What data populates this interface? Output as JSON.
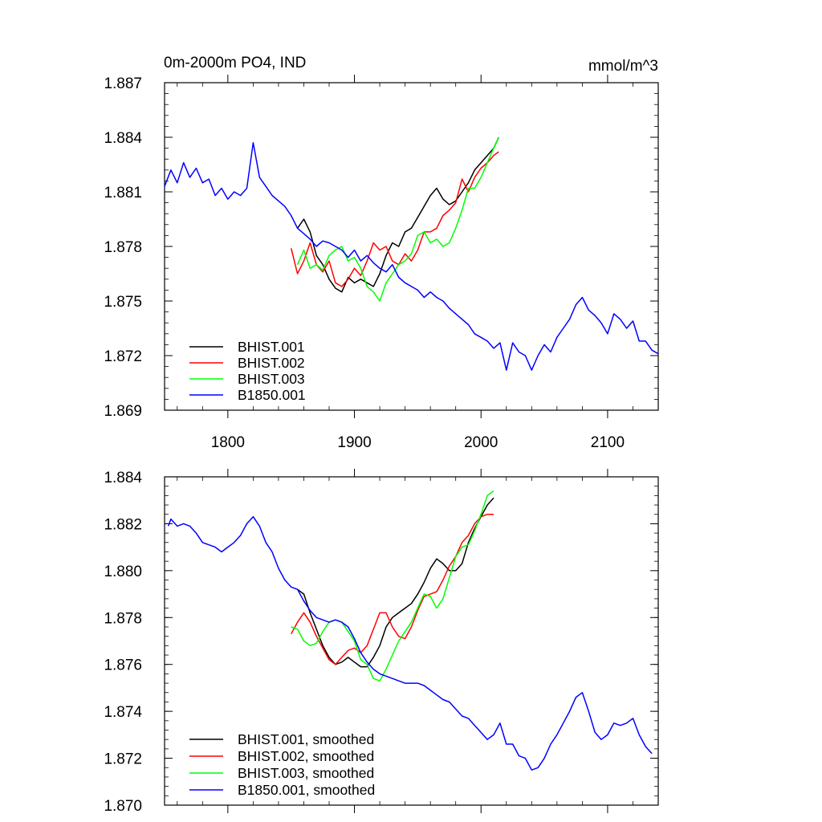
{
  "chart_data": [
    {
      "type": "line",
      "title": "0m-2000m PO4, IND",
      "units_label": "mmol/m^3",
      "xlim": [
        1750,
        2140
      ],
      "ylim": [
        1.869,
        1.887
      ],
      "x_ticks": [
        1800,
        1900,
        2000,
        2100
      ],
      "x_tick_labels": [
        "1800",
        "1900",
        "2000",
        "2100"
      ],
      "y_ticks": [
        1.869,
        1.872,
        1.875,
        1.878,
        1.881,
        1.884,
        1.887
      ],
      "y_tick_labels": [
        "1.869",
        "1.872",
        "1.875",
        "1.878",
        "1.881",
        "1.884",
        "1.887"
      ],
      "legend_position": "bottom-left",
      "series": [
        {
          "name": "BHIST.001",
          "color": "#000000",
          "x": [
            1855,
            1860,
            1865,
            1870,
            1875,
            1880,
            1885,
            1890,
            1895,
            1900,
            1905,
            1910,
            1915,
            1920,
            1925,
            1930,
            1935,
            1940,
            1945,
            1950,
            1955,
            1960,
            1965,
            1970,
            1975,
            1980,
            1985,
            1990,
            1995,
            2000,
            2005,
            2010,
            2014
          ],
          "y": [
            1.879,
            1.8795,
            1.8788,
            1.8775,
            1.877,
            1.8762,
            1.8757,
            1.8755,
            1.8763,
            1.876,
            1.8762,
            1.876,
            1.8758,
            1.8765,
            1.8775,
            1.8782,
            1.878,
            1.8788,
            1.879,
            1.8796,
            1.8802,
            1.8808,
            1.8812,
            1.8806,
            1.8803,
            1.8805,
            1.881,
            1.8815,
            1.8822,
            1.8826,
            1.883,
            1.8834,
            1.884
          ]
        },
        {
          "name": "BHIST.002",
          "color": "#ff0000",
          "x": [
            1850,
            1855,
            1860,
            1865,
            1870,
            1875,
            1880,
            1885,
            1890,
            1895,
            1900,
            1905,
            1910,
            1915,
            1920,
            1925,
            1930,
            1935,
            1940,
            1945,
            1950,
            1955,
            1960,
            1965,
            1970,
            1975,
            1980,
            1985,
            1990,
            1995,
            2000,
            2005,
            2010,
            2014
          ],
          "y": [
            1.8779,
            1.8765,
            1.8772,
            1.8782,
            1.877,
            1.8766,
            1.8772,
            1.876,
            1.8758,
            1.8762,
            1.8768,
            1.8764,
            1.8772,
            1.8782,
            1.8778,
            1.878,
            1.8772,
            1.877,
            1.8776,
            1.8772,
            1.8778,
            1.8788,
            1.8788,
            1.879,
            1.8797,
            1.88,
            1.8804,
            1.8817,
            1.881,
            1.8818,
            1.8823,
            1.8826,
            1.883,
            1.8832
          ]
        },
        {
          "name": "BHIST.003",
          "color": "#00ff00",
          "x": [
            1855,
            1860,
            1865,
            1870,
            1875,
            1880,
            1885,
            1890,
            1895,
            1900,
            1905,
            1910,
            1915,
            1920,
            1925,
            1930,
            1935,
            1940,
            1945,
            1950,
            1955,
            1960,
            1965,
            1970,
            1975,
            1980,
            1985,
            1990,
            1995,
            2000,
            2005,
            2010,
            2014
          ],
          "y": [
            1.877,
            1.8778,
            1.8768,
            1.877,
            1.8767,
            1.8775,
            1.8778,
            1.878,
            1.8772,
            1.8774,
            1.8768,
            1.8758,
            1.8755,
            1.875,
            1.876,
            1.8765,
            1.877,
            1.8772,
            1.8776,
            1.8786,
            1.8788,
            1.8782,
            1.8784,
            1.878,
            1.8782,
            1.879,
            1.88,
            1.8812,
            1.8812,
            1.8818,
            1.8826,
            1.8834,
            1.884
          ]
        },
        {
          "name": "B1850.001",
          "color": "#0000ff",
          "x": [
            1750,
            1755,
            1760,
            1765,
            1770,
            1775,
            1780,
            1785,
            1790,
            1795,
            1800,
            1805,
            1810,
            1815,
            1820,
            1825,
            1830,
            1835,
            1840,
            1845,
            1850,
            1855,
            1860,
            1865,
            1870,
            1875,
            1880,
            1885,
            1890,
            1895,
            1900,
            1905,
            1910,
            1915,
            1920,
            1925,
            1930,
            1935,
            1940,
            1945,
            1950,
            1955,
            1960,
            1965,
            1970,
            1975,
            1980,
            1985,
            1990,
            1995,
            2000,
            2005,
            2010,
            2015,
            2020,
            2025,
            2030,
            2035,
            2040,
            2045,
            2050,
            2055,
            2060,
            2065,
            2070,
            2075,
            2080,
            2085,
            2090,
            2095,
            2100,
            2105,
            2110,
            2115,
            2120,
            2125,
            2130,
            2135,
            2140
          ],
          "y": [
            1.8813,
            1.8822,
            1.8815,
            1.8826,
            1.8818,
            1.8823,
            1.8815,
            1.8817,
            1.8808,
            1.8812,
            1.8806,
            1.881,
            1.8808,
            1.8812,
            1.8837,
            1.8818,
            1.8813,
            1.8808,
            1.8805,
            1.8802,
            1.8797,
            1.879,
            1.8787,
            1.8784,
            1.878,
            1.8783,
            1.8782,
            1.878,
            1.8778,
            1.8774,
            1.8778,
            1.8772,
            1.8775,
            1.8771,
            1.8768,
            1.8766,
            1.877,
            1.8763,
            1.876,
            1.8758,
            1.8756,
            1.8752,
            1.8755,
            1.8752,
            1.875,
            1.8746,
            1.8743,
            1.874,
            1.8737,
            1.8732,
            1.873,
            1.8728,
            1.8724,
            1.8727,
            1.8712,
            1.8727,
            1.8722,
            1.872,
            1.8712,
            1.872,
            1.8726,
            1.8722,
            1.873,
            1.8735,
            1.874,
            1.8748,
            1.8752,
            1.8745,
            1.8742,
            1.8738,
            1.8732,
            1.8743,
            1.874,
            1.8735,
            1.8739,
            1.8728,
            1.8728,
            1.8723,
            1.8721
          ]
        }
      ]
    },
    {
      "type": "line",
      "title": "",
      "xlim": [
        1750,
        2140
      ],
      "ylim": [
        1.87,
        1.884
      ],
      "x_ticks": [
        1800,
        1900,
        2000,
        2100
      ],
      "y_ticks": [
        1.87,
        1.872,
        1.874,
        1.876,
        1.878,
        1.88,
        1.882,
        1.884
      ],
      "y_tick_labels": [
        "1.870",
        "1.872",
        "1.874",
        "1.876",
        "1.878",
        "1.880",
        "1.882",
        "1.884"
      ],
      "legend_position": "bottom-left",
      "series": [
        {
          "name": "BHIST.001, smoothed",
          "color": "#000000",
          "x": [
            1855,
            1860,
            1865,
            1870,
            1875,
            1880,
            1885,
            1890,
            1895,
            1900,
            1905,
            1910,
            1915,
            1920,
            1925,
            1930,
            1935,
            1940,
            1945,
            1950,
            1955,
            1960,
            1965,
            1970,
            1975,
            1980,
            1985,
            1990,
            1995,
            2000,
            2005,
            2010
          ],
          "y": [
            1.8792,
            1.879,
            1.8782,
            1.8775,
            1.8768,
            1.8763,
            1.876,
            1.8761,
            1.8763,
            1.8761,
            1.8759,
            1.8759,
            1.8763,
            1.8768,
            1.8776,
            1.878,
            1.8782,
            1.8784,
            1.8786,
            1.879,
            1.8795,
            1.8801,
            1.8805,
            1.8803,
            1.88,
            1.88,
            1.8803,
            1.8812,
            1.8818,
            1.8823,
            1.8828,
            1.8831
          ]
        },
        {
          "name": "BHIST.002, smoothed",
          "color": "#ff0000",
          "x": [
            1850,
            1855,
            1860,
            1865,
            1870,
            1875,
            1880,
            1885,
            1890,
            1895,
            1900,
            1905,
            1910,
            1915,
            1920,
            1925,
            1930,
            1935,
            1940,
            1945,
            1950,
            1955,
            1960,
            1965,
            1970,
            1975,
            1980,
            1985,
            1990,
            1995,
            2000,
            2005,
            2010
          ],
          "y": [
            1.8773,
            1.8778,
            1.8782,
            1.8778,
            1.8772,
            1.8767,
            1.8762,
            1.876,
            1.8763,
            1.8766,
            1.8767,
            1.8765,
            1.8768,
            1.8775,
            1.8782,
            1.8782,
            1.8776,
            1.8772,
            1.8771,
            1.8776,
            1.8783,
            1.8789,
            1.879,
            1.8791,
            1.8796,
            1.8802,
            1.8806,
            1.8812,
            1.8815,
            1.882,
            1.8823,
            1.8824,
            1.8824
          ]
        },
        {
          "name": "BHIST.003, smoothed",
          "color": "#00ff00",
          "x": [
            1850,
            1855,
            1860,
            1865,
            1870,
            1875,
            1880,
            1885,
            1890,
            1895,
            1900,
            1905,
            1910,
            1915,
            1920,
            1925,
            1930,
            1935,
            1940,
            1945,
            1950,
            1955,
            1960,
            1965,
            1970,
            1975,
            1980,
            1985,
            1990,
            1995,
            2000,
            2005,
            2010
          ],
          "y": [
            1.8776,
            1.8775,
            1.877,
            1.8768,
            1.8769,
            1.8774,
            1.8778,
            1.8779,
            1.8778,
            1.8774,
            1.877,
            1.8762,
            1.876,
            1.8754,
            1.8753,
            1.8758,
            1.8764,
            1.877,
            1.8774,
            1.8778,
            1.8784,
            1.879,
            1.8789,
            1.8784,
            1.8788,
            1.8797,
            1.8806,
            1.881,
            1.8811,
            1.8817,
            1.8824,
            1.8832,
            1.8834
          ]
        },
        {
          "name": "B1850.001, smoothed",
          "color": "#0000ff",
          "x": [
            1753,
            1755,
            1760,
            1765,
            1770,
            1775,
            1780,
            1785,
            1790,
            1795,
            1800,
            1805,
            1810,
            1815,
            1820,
            1825,
            1830,
            1835,
            1840,
            1845,
            1850,
            1855,
            1860,
            1865,
            1870,
            1875,
            1880,
            1885,
            1890,
            1895,
            1900,
            1905,
            1910,
            1915,
            1920,
            1925,
            1930,
            1935,
            1940,
            1945,
            1950,
            1955,
            1960,
            1965,
            1970,
            1975,
            1980,
            1985,
            1990,
            1995,
            2000,
            2005,
            2010,
            2015,
            2020,
            2025,
            2030,
            2035,
            2040,
            2045,
            2050,
            2055,
            2060,
            2065,
            2070,
            2075,
            2080,
            2085,
            2090,
            2095,
            2100,
            2105,
            2110,
            2115,
            2120,
            2125,
            2130,
            2135
          ],
          "y": [
            1.8819,
            1.8822,
            1.8819,
            1.882,
            1.8819,
            1.8816,
            1.8812,
            1.8811,
            1.881,
            1.8808,
            1.881,
            1.8812,
            1.8815,
            1.882,
            1.8823,
            1.8819,
            1.8812,
            1.8808,
            1.8801,
            1.8796,
            1.8793,
            1.8792,
            1.8787,
            1.8783,
            1.878,
            1.8779,
            1.8778,
            1.8779,
            1.8778,
            1.8776,
            1.8771,
            1.8765,
            1.8761,
            1.8758,
            1.8756,
            1.8755,
            1.8754,
            1.8753,
            1.8752,
            1.8752,
            1.8752,
            1.8751,
            1.8749,
            1.8747,
            1.8745,
            1.8744,
            1.8741,
            1.8738,
            1.8737,
            1.8734,
            1.8731,
            1.8728,
            1.873,
            1.8735,
            1.8726,
            1.8726,
            1.8721,
            1.872,
            1.8715,
            1.8716,
            1.872,
            1.8726,
            1.873,
            1.8735,
            1.874,
            1.8746,
            1.8748,
            1.874,
            1.8731,
            1.8728,
            1.873,
            1.8735,
            1.8734,
            1.8735,
            1.8737,
            1.873,
            1.8725,
            1.8722
          ]
        }
      ]
    }
  ]
}
